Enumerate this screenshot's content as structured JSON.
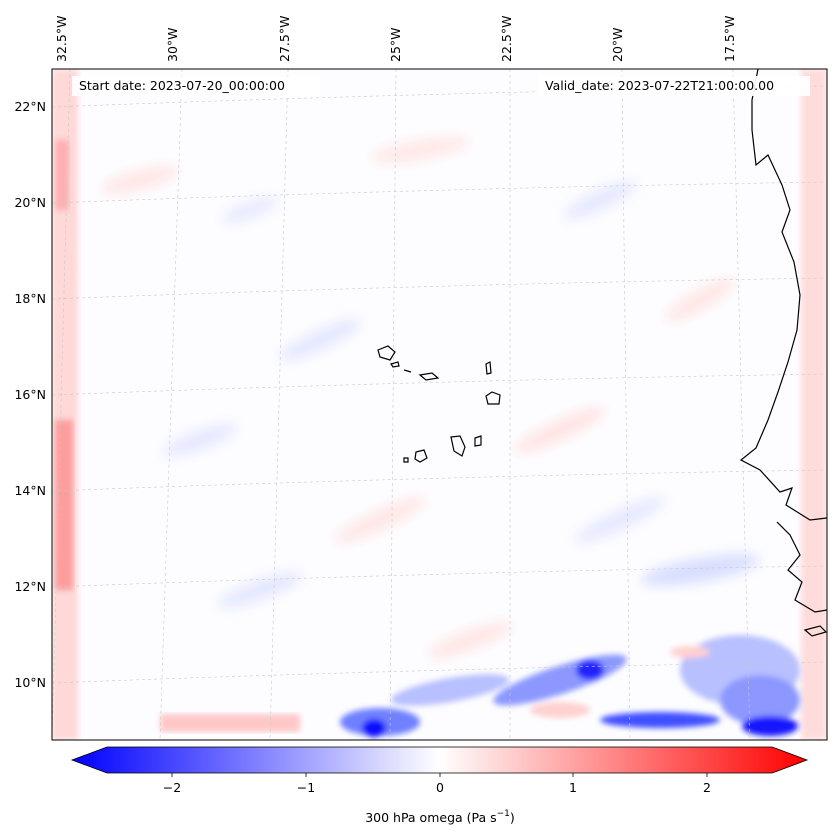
{
  "map": {
    "start_date": "Start date: 2023-07-20_00:00:00",
    "valid_date": "Valid_date: 2023-07-22T21:00:00.00",
    "lon_labels": [
      "32.5°W",
      "30°W",
      "27.5°W",
      "25°W",
      "22.5°W",
      "20°W",
      "17.5°W"
    ],
    "lat_labels": [
      "22°N",
      "20°N",
      "18°N",
      "16°N",
      "14°N",
      "12°N",
      "10°N"
    ],
    "colorbar": {
      "ticks": [
        "−2",
        "−1",
        "0",
        "1",
        "2"
      ],
      "label": "300 hPa omega (Pa s",
      "label_sup": "−1",
      "label_end": ")",
      "vmin": -2.5,
      "vmax": 2.5
    },
    "colors": {
      "negative": "#0000ff",
      "positive": "#ff0000",
      "neutral": "#ffffff",
      "coast": "#000000",
      "grid": "#c8c8c8"
    }
  }
}
